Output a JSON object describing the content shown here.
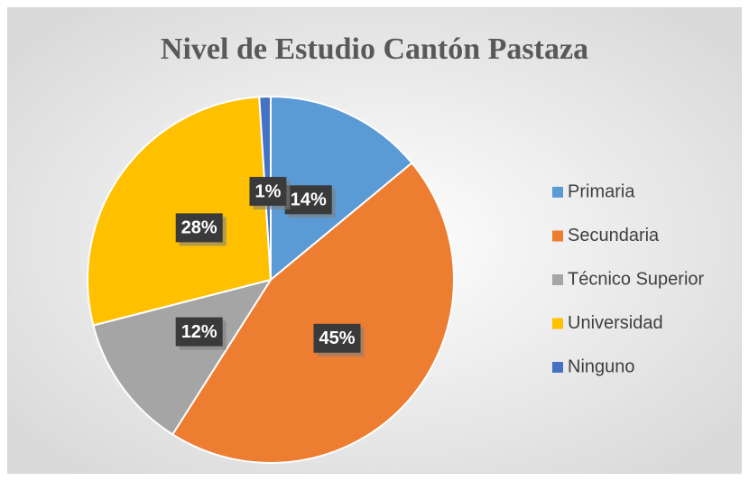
{
  "chart_data": {
    "type": "pie",
    "title": "Nivel de Estudio Cantón Pastaza",
    "categories": [
      "Primaria",
      "Secundaria",
      "Técnico Superior",
      "Universidad",
      "Ninguno"
    ],
    "values": [
      14,
      45,
      12,
      28,
      1
    ],
    "value_labels": [
      "14%",
      "45%",
      "12%",
      "28%",
      "1%"
    ],
    "colors": [
      "#5b9bd5",
      "#ed7d31",
      "#a5a5a5",
      "#ffc000",
      "#4472c4"
    ],
    "legend": "right"
  }
}
